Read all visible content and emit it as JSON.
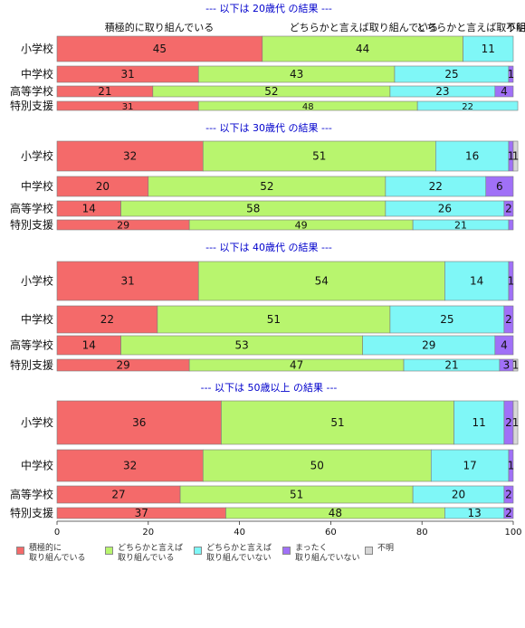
{
  "colors": {
    "積極的に取り組んでいる": "#f46a6a",
    "どちらかと言えば取り組んでいる": "#b8f56e",
    "どちらかと言えば取り組んでいない": "#7ff7f7",
    "まったく取り組んでいない": "#a070f7",
    "不明": "#d7d7d7",
    "panel_title": "#0000cc"
  },
  "top_labels": [
    "積極的に取り組んでいる",
    "どちらかと言えば取り組んでいる",
    "どちらかと言えば取り組んでいない",
    "不明"
  ],
  "legend": [
    {
      "line1": "積極的に",
      "line2": "取り組んでいる"
    },
    {
      "line1": "どちらかと言えば",
      "line2": "取り組んでいる"
    },
    {
      "line1": "どちらかと言えば",
      "line2": "取り組んでいない"
    },
    {
      "line1": "まったく",
      "line2": "取り組んでいない"
    },
    {
      "line1": "不明",
      "line2": ""
    }
  ],
  "chart_data": {
    "type": "bar",
    "orientation": "horizontal",
    "stacked": true,
    "xlim": [
      0,
      100
    ],
    "xticks": [
      0,
      20,
      40,
      60,
      80,
      100
    ],
    "categories": [
      "積極的に取り組んでいる",
      "どちらかと言えば取り組んでいる",
      "どちらかと言えば取り組んでいない",
      "まったく取り組んでいない",
      "不明"
    ],
    "panels": [
      {
        "title": "--- 以下は 20歳代 の結果 ---",
        "rows": [
          {
            "label": "小学校",
            "values": [
              45,
              44,
              11,
              0,
              0
            ],
            "labels": [
              "45",
              "44",
              "11",
              "",
              ""
            ]
          },
          {
            "label": "中学校",
            "values": [
              31,
              43,
              25,
              1,
              0
            ],
            "labels": [
              "31",
              "43",
              "25",
              "1",
              ""
            ]
          },
          {
            "label": "高等学校",
            "values": [
              21,
              52,
              23,
              4,
              0
            ],
            "labels": [
              "21",
              "52",
              "23",
              "4",
              ""
            ]
          },
          {
            "label": "特別支援",
            "values": [
              31,
              48,
              22,
              0,
              0
            ],
            "labels": [
              "31",
              "48",
              "22",
              "",
              ""
            ]
          }
        ]
      },
      {
        "title": "--- 以下は 30歳代 の結果 ---",
        "rows": [
          {
            "label": "小学校",
            "values": [
              32,
              51,
              16,
              1,
              1
            ],
            "labels": [
              "32",
              "51",
              "16",
              "1",
              "1"
            ]
          },
          {
            "label": "中学校",
            "values": [
              20,
              52,
              22,
              6,
              0
            ],
            "labels": [
              "20",
              "52",
              "22",
              "6",
              ""
            ]
          },
          {
            "label": "高等学校",
            "values": [
              14,
              58,
              26,
              2,
              0
            ],
            "labels": [
              "14",
              "58",
              "26",
              "2",
              ""
            ]
          },
          {
            "label": "特別支援",
            "values": [
              29,
              49,
              21,
              1,
              0
            ],
            "labels": [
              "29",
              "49",
              "21",
              "",
              ""
            ]
          }
        ]
      },
      {
        "title": "--- 以下は 40歳代 の結果 ---",
        "rows": [
          {
            "label": "小学校",
            "values": [
              31,
              54,
              14,
              1,
              0
            ],
            "labels": [
              "31",
              "54",
              "14",
              "1",
              ""
            ]
          },
          {
            "label": "中学校",
            "values": [
              22,
              51,
              25,
              2,
              0
            ],
            "labels": [
              "22",
              "51",
              "25",
              "2",
              ""
            ]
          },
          {
            "label": "高等学校",
            "values": [
              14,
              53,
              29,
              4,
              0
            ],
            "labels": [
              "14",
              "53",
              "29",
              "4",
              ""
            ]
          },
          {
            "label": "特別支援",
            "values": [
              29,
              47,
              21,
              3,
              1
            ],
            "labels": [
              "29",
              "47",
              "21",
              "3",
              "1"
            ]
          }
        ]
      },
      {
        "title": "--- 以下は 50歳以上 の結果 ---",
        "rows": [
          {
            "label": "小学校",
            "values": [
              36,
              51,
              11,
              2,
              1
            ],
            "labels": [
              "36",
              "51",
              "11",
              "2",
              "1"
            ]
          },
          {
            "label": "中学校",
            "values": [
              32,
              50,
              17,
              1,
              0
            ],
            "labels": [
              "32",
              "50",
              "17",
              "1",
              ""
            ]
          },
          {
            "label": "高等学校",
            "values": [
              27,
              51,
              20,
              2,
              0
            ],
            "labels": [
              "27",
              "51",
              "20",
              "2",
              ""
            ]
          },
          {
            "label": "特別支援",
            "values": [
              37,
              48,
              13,
              2,
              0
            ],
            "labels": [
              "37",
              "48",
              "13",
              "2",
              ""
            ]
          }
        ]
      }
    ]
  }
}
